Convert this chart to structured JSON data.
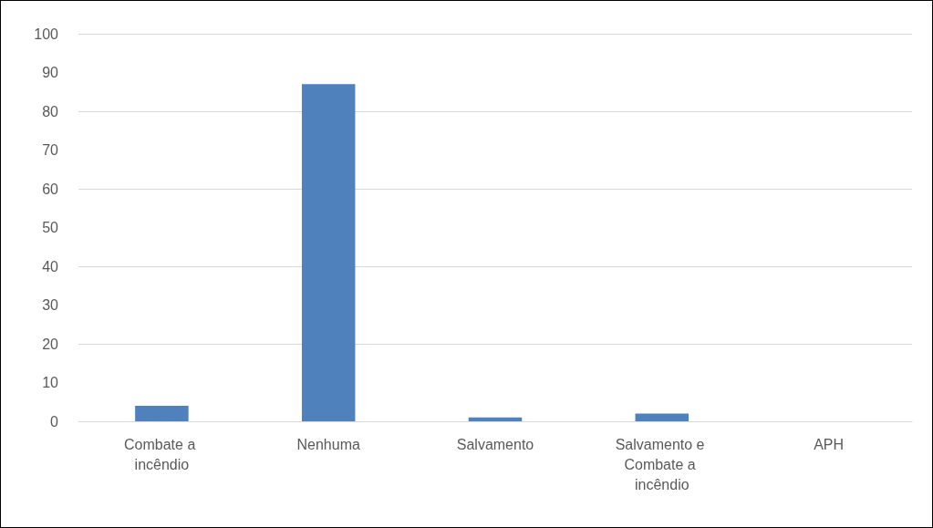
{
  "chart_data": {
    "type": "bar",
    "categories": [
      "Combate a incêndio",
      "Nenhuma",
      "Salvamento",
      "Salvamento e Combate a incêndio",
      "APH"
    ],
    "values": [
      4,
      87,
      1,
      2,
      0
    ],
    "color": "#4f81bd",
    "ylim": [
      0,
      100
    ],
    "yticks": [
      0,
      10,
      20,
      30,
      40,
      50,
      60,
      70,
      80,
      90,
      100
    ],
    "grid": "y"
  }
}
